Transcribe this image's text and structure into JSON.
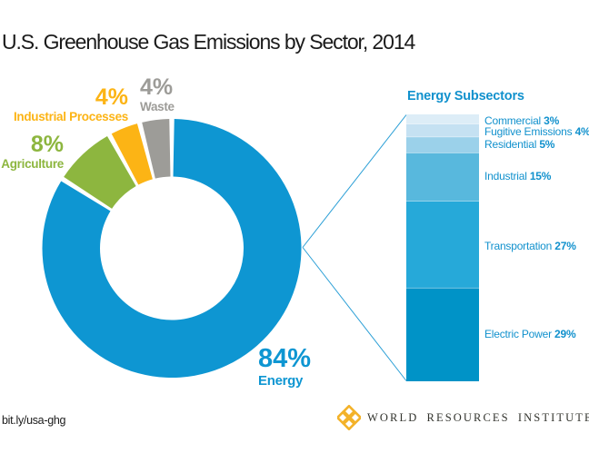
{
  "page": {
    "title": "U.S. Greenhouse Gas Emissions by Sector, 2014"
  },
  "right_panel": {
    "header": "Energy Subsectors"
  },
  "footer": {
    "link": "bit.ly/usa-ghg",
    "org_name": "WORLD RESOURCES INSTITUTE",
    "logo_icon": "wri-diamond-lattice-icon",
    "logo_color": "#f3b229"
  },
  "colors": {
    "blue_text": "#1191cd",
    "funnel_line": "#2b9fd6",
    "title_text": "#1b1b1b"
  },
  "chart_data": [
    {
      "type": "pie",
      "subtype": "donut",
      "title": "U.S. Greenhouse Gas Emissions by Sector, 2014",
      "unit": "%",
      "categories": [
        "Energy",
        "Agriculture",
        "Industrial Processes",
        "Waste"
      ],
      "values": [
        84,
        8,
        4,
        4
      ],
      "colors": [
        "#0e96d2",
        "#8db63f",
        "#fcb415",
        "#9d9c98"
      ],
      "start": "12 o'clock, clockwise",
      "labels_position": "outside, colored to match segment"
    },
    {
      "type": "bar",
      "subtype": "single-stacked-column",
      "title": "Energy Subsectors",
      "unit": "%",
      "categories": [
        "Commercial",
        "Fugitive Emissions",
        "Residential",
        "Industrial",
        "Transportation",
        "Electric Power"
      ],
      "values": [
        3,
        4,
        5,
        15,
        27,
        29
      ],
      "colors": [
        "#ddedf7",
        "#c5e1f2",
        "#9bd1ea",
        "#58b8dd",
        "#26a9d9",
        "#0093c7"
      ],
      "order": "smallest at top",
      "labels_position": "right of bar, value bold"
    }
  ]
}
